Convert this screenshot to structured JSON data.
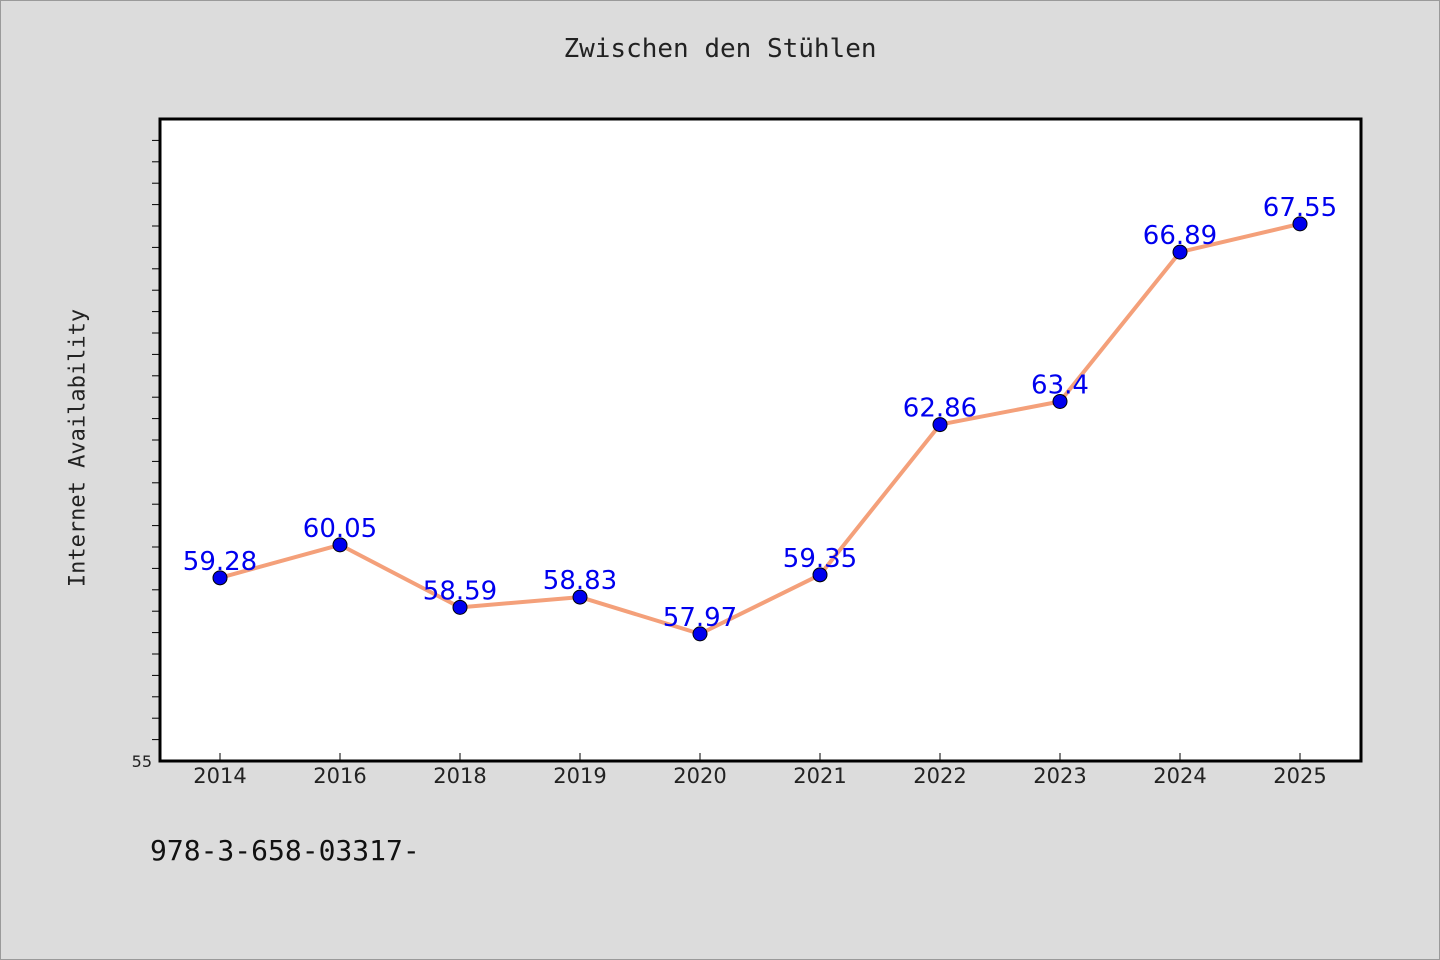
{
  "chart_data": {
    "type": "line",
    "title": "Zwischen den Stühlen",
    "xlabel": "",
    "ylabel": "Internet Availability",
    "categories": [
      "2014",
      "2016",
      "2018",
      "2019",
      "2020",
      "2021",
      "2022",
      "2023",
      "2024",
      "2025"
    ],
    "series": [
      {
        "values": [
          59.28,
          60.05,
          58.59,
          58.83,
          57.97,
          59.35,
          62.86,
          63.4,
          66.89,
          67.55
        ],
        "labels": [
          "59.28",
          "60.05",
          "58.59",
          "58.83",
          "57.97",
          "59.35",
          "62.86",
          "63.4",
          "66.89",
          "67.55"
        ],
        "line_color": "#f4a07a",
        "marker_color": "#0000ee",
        "label_color": "#0000ee"
      }
    ],
    "y_tick_labels": [
      "55"
    ],
    "ylim": [
      55,
      70
    ],
    "grid": false,
    "legend": "none",
    "plot_background": "#ffffff",
    "figure_background": "#dcdcdc"
  },
  "footnote": "978-3-658-03317-"
}
